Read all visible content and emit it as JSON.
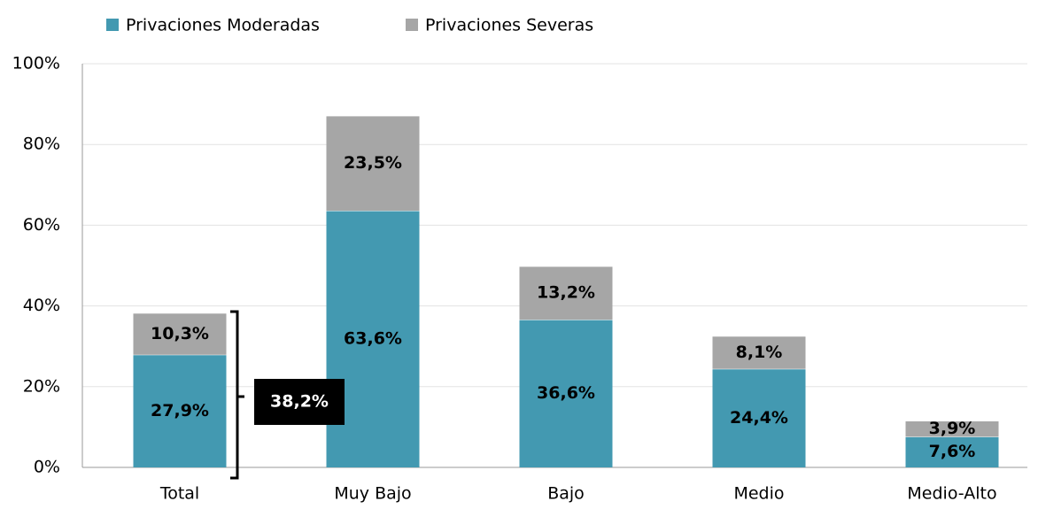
{
  "chart_data": {
    "type": "stacked_bar",
    "categories": [
      "Total",
      "Muy Bajo",
      "Bajo",
      "Medio",
      "Medio-Alto"
    ],
    "series": [
      {
        "name": "Privaciones Moderadas",
        "color": "#4399b1",
        "values": [
          27.9,
          63.6,
          36.6,
          24.4,
          7.6
        ],
        "value_labels": [
          "27,9%",
          "63,6%",
          "36,6%",
          "24,4%",
          "7,6%"
        ]
      },
      {
        "name": "Privaciones Severas",
        "color": "#a6a6a6",
        "values": [
          10.3,
          23.5,
          13.2,
          8.1,
          3.9
        ],
        "value_labels": [
          "10,3%",
          "23,5%",
          "13,2%",
          "8,1%",
          "3,9%"
        ]
      }
    ],
    "ylim": [
      0,
      100
    ],
    "yticks": [
      {
        "value": 0,
        "label": "0%"
      },
      {
        "value": 20,
        "label": "20%"
      },
      {
        "value": 40,
        "label": "40%"
      },
      {
        "value": 60,
        "label": "60%"
      },
      {
        "value": 80,
        "label": "80%"
      },
      {
        "value": 100,
        "label": "100%"
      }
    ],
    "grid": true,
    "legend": "top",
    "annotations": [
      {
        "text": "38,2%"
      }
    ]
  }
}
